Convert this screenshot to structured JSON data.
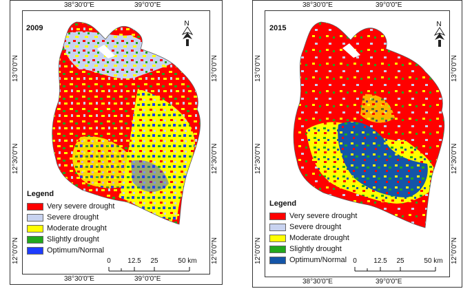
{
  "maps": [
    {
      "year": "2009",
      "coords": {
        "top": [
          "38°30'0\"E",
          "39°0'0\"E"
        ],
        "bottom": [
          "38°30'0\"E",
          "39°0'0\"E"
        ],
        "left": [
          "13°0'0\"N",
          "12°30'0\"N",
          "12°0'0\"N"
        ],
        "right": [
          "13°0'0\"N",
          "12°30'0\"N",
          "12°0'0\"N"
        ]
      },
      "legend": {
        "title": "Legend",
        "items": [
          {
            "label": "Very severe drought",
            "color": "#ff0000"
          },
          {
            "label": "Severe drought",
            "color": "#c8d3f0"
          },
          {
            "label": "Moderate drought",
            "color": "#ffff00"
          },
          {
            "label": "Slightly drought",
            "color": "#22a81c"
          },
          {
            "label": "Optimum/Normal",
            "color": "#1e3cff"
          }
        ]
      },
      "scale": {
        "ticks": [
          "0",
          "12.5",
          "25",
          "50 km"
        ]
      },
      "north_icon": "north-arrow-icon"
    },
    {
      "year": "2015",
      "coords": {
        "top": [
          "38°30'0\"E",
          "39°0'0\"E"
        ],
        "bottom": [
          "38°30'0\"E",
          "39°0'0\"E"
        ],
        "left": [
          "13°0'0\"N",
          "12°30'0\"N",
          "12°0'0\"N"
        ],
        "right": [
          "13°0'0\"N",
          "12°30'0\"N",
          "12°0'0\"N"
        ]
      },
      "legend": {
        "title": "Legend",
        "items": [
          {
            "label": "Very severe drought",
            "color": "#ff0000"
          },
          {
            "label": "Severe drought",
            "color": "#c8d3f0"
          },
          {
            "label": "Moderate drought",
            "color": "#ffff00"
          },
          {
            "label": "Slightly drought",
            "color": "#22a81c"
          },
          {
            "label": "Optimum/Normal",
            "color": "#1455a8"
          }
        ]
      },
      "scale": {
        "ticks": [
          "0",
          "12.5",
          "25",
          "50 km"
        ]
      },
      "north_icon": "north-arrow-icon"
    }
  ]
}
